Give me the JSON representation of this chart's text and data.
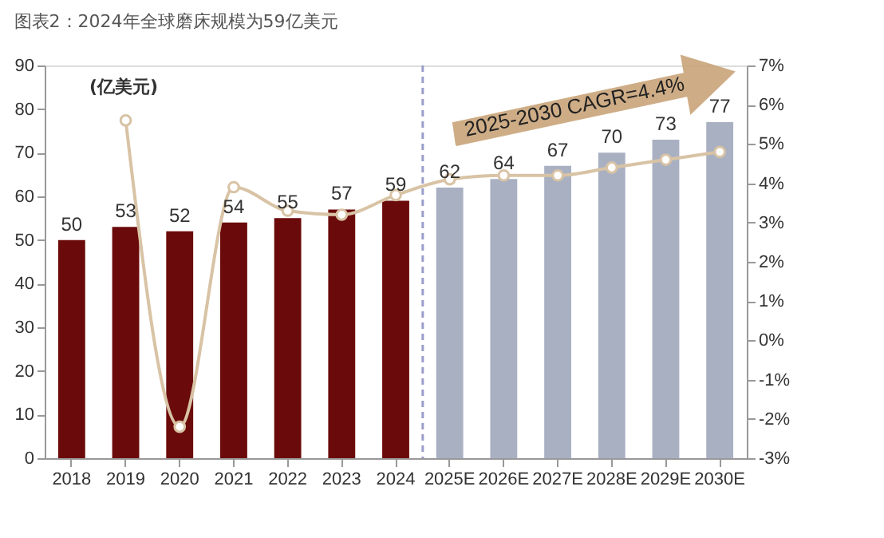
{
  "chart_data": {
    "type": "bar",
    "title": "图表2：2024年全球磨床规模为59亿美元",
    "ylabel": "(亿美元)",
    "categories": [
      "2018",
      "2019",
      "2020",
      "2021",
      "2022",
      "2023",
      "2024",
      "2025E",
      "2026E",
      "2027E",
      "2028E",
      "2029E",
      "2030E"
    ],
    "series": [
      {
        "colors": [
          "#6b0a0a",
          "#6b0a0a",
          "#6b0a0a",
          "#6b0a0a",
          "#6b0a0a",
          "#6b0a0a",
          "#6b0a0a",
          "#a9b0c2",
          "#a9b0c2",
          "#a9b0c2",
          "#a9b0c2",
          "#a9b0c2",
          "#a9b0c2"
        ],
        "values": [
          50,
          53,
          52,
          54,
          55,
          57,
          59,
          62,
          64,
          67,
          70,
          73,
          77
        ],
        "value_labels": [
          "50",
          "53",
          "52",
          "54",
          "55",
          "57",
          "59",
          "62",
          "64",
          "67",
          "70",
          "73",
          "77"
        ]
      },
      {
        "type": "line",
        "axis": "y2",
        "color": "#d8c3a5",
        "marker": "circle",
        "values": [
          null,
          5.6,
          -2.2,
          3.9,
          3.3,
          3.2,
          3.7,
          4.1,
          4.2,
          4.2,
          4.4,
          4.6,
          4.8
        ]
      }
    ],
    "ylim": [
      0,
      90
    ],
    "yticks": [
      0,
      10,
      20,
      30,
      40,
      50,
      60,
      70,
      80,
      90
    ],
    "y2lim": [
      -3,
      7
    ],
    "y2ticks": [
      {
        "value": -3,
        "label": "-3%"
      },
      {
        "value": -2,
        "label": "-2%"
      },
      {
        "value": -1,
        "label": "-1%"
      },
      {
        "value": 0,
        "label": "0%"
      },
      {
        "value": 1,
        "label": "1%"
      },
      {
        "value": 2,
        "label": "2%"
      },
      {
        "value": 3,
        "label": "3%"
      },
      {
        "value": 4,
        "label": "4%"
      },
      {
        "value": 5,
        "label": "5%"
      },
      {
        "value": 6,
        "label": "6%"
      },
      {
        "value": 7,
        "label": "7%"
      }
    ],
    "ref_lines": [
      {
        "axis": "x",
        "value": "2025E",
        "color": "#9a9ccc",
        "line_style": "dashed"
      }
    ],
    "annotations": [
      "2025-2030 CAGR=4.4%"
    ],
    "grid": false
  }
}
